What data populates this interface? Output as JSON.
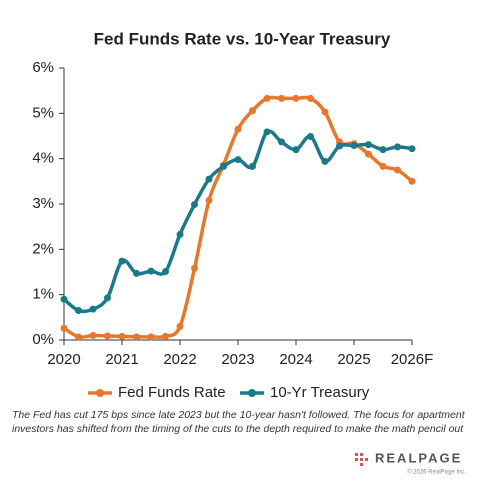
{
  "chart_data": {
    "type": "line",
    "title": "Fed Funds Rate vs. 10-Year Treasury",
    "x": [
      2020,
      2020.25,
      2020.5,
      2020.75,
      2021,
      2021.25,
      2021.5,
      2021.75,
      2022,
      2022.25,
      2022.5,
      2022.75,
      2023,
      2023.25,
      2023.5,
      2023.75,
      2024,
      2024.25,
      2024.5,
      2024.75,
      2025,
      2025.25,
      2025.5,
      2025.75,
      2026
    ],
    "series": [
      {
        "name": "Fed Funds Rate",
        "color": "#e8772e",
        "values": [
          0.26,
          0.07,
          0.1,
          0.09,
          0.08,
          0.07,
          0.07,
          0.08,
          0.3,
          1.58,
          3.08,
          3.86,
          4.65,
          5.06,
          5.33,
          5.33,
          5.33,
          5.33,
          5.03,
          4.37,
          4.33,
          4.1,
          3.83,
          3.75,
          3.5
        ]
      },
      {
        "name": "10-Yr Treasury",
        "color": "#1a7a8a",
        "values": [
          0.9,
          0.65,
          0.68,
          0.93,
          1.74,
          1.47,
          1.52,
          1.51,
          2.33,
          2.99,
          3.55,
          3.83,
          3.98,
          3.83,
          4.59,
          4.37,
          4.2,
          4.49,
          3.94,
          4.28,
          4.29,
          4.31,
          4.2,
          4.26,
          4.22
        ]
      }
    ],
    "xlim": [
      2020,
      2026
    ],
    "xticks": [
      2020,
      2021,
      2022,
      2023,
      2024,
      2025,
      {
        "value": 2026,
        "label": "2026F"
      }
    ],
    "ylim": [
      0,
      6
    ],
    "yticks": [
      {
        "value": 0,
        "label": "0%"
      },
      {
        "value": 1,
        "label": "1%"
      },
      {
        "value": 2,
        "label": "2%"
      },
      {
        "value": 3,
        "label": "3%"
      },
      {
        "value": 4,
        "label": "4%"
      },
      {
        "value": 5,
        "label": "5%"
      },
      {
        "value": 6,
        "label": "6%"
      }
    ],
    "grid": false,
    "legend": "bottom",
    "note": "The Fed has cut 175 bps since late 2023 but the 10-year hasn't followed. The focus for apartment investors has shifted from the timing of the cuts to the depth required to make the math pencil out",
    "logo": "REALPAGE",
    "copyright": "© 2026 RealPage Inc."
  }
}
